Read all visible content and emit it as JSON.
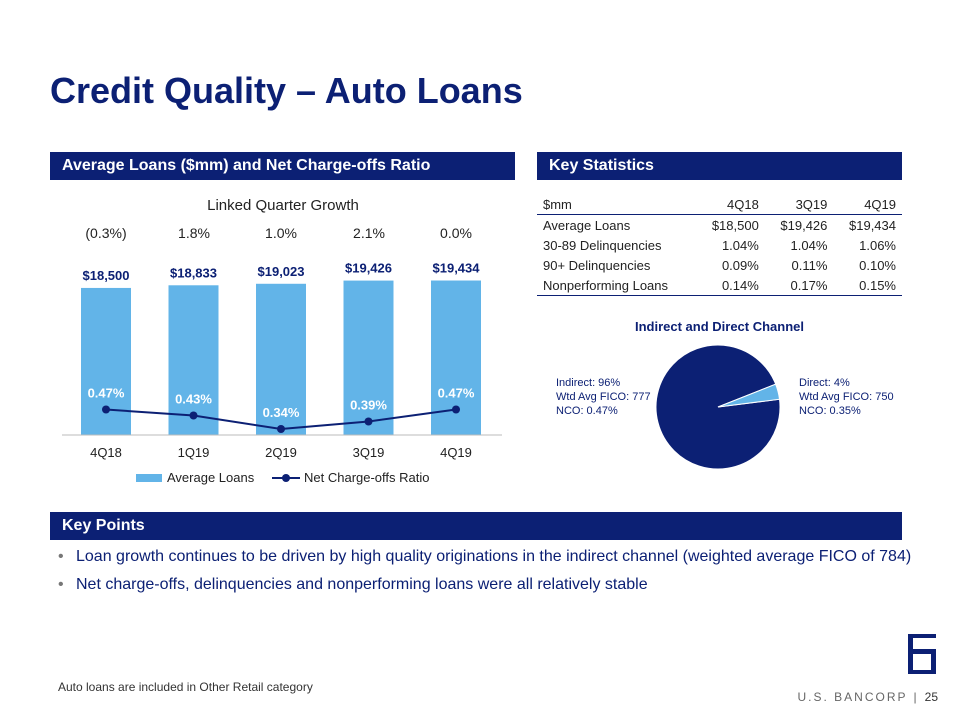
{
  "title": "Credit Quality – Auto Loans",
  "sections": {
    "left": "Average Loans ($mm) and Net Charge-offs Ratio",
    "right": "Key Statistics",
    "key_points": "Key Points"
  },
  "chart": {
    "growth_title": "Linked Quarter Growth",
    "growth": [
      "(0.3%)",
      "1.8%",
      "1.0%",
      "2.1%",
      "0.0%"
    ],
    "legend": {
      "bars": "Average Loans",
      "line": "Net Charge-offs Ratio"
    },
    "colors": {
      "bar": "#62b4e8",
      "line": "#0c2074"
    }
  },
  "chart_data": {
    "type": "bar",
    "categories": [
      "4Q18",
      "1Q19",
      "2Q19",
      "3Q19",
      "4Q19"
    ],
    "series": [
      {
        "name": "Average Loans",
        "type": "bar",
        "values": [
          18500,
          18833,
          19023,
          19426,
          19434
        ],
        "labels": [
          "$18,500",
          "$18,833",
          "$19,023",
          "$19,426",
          "$19,434"
        ]
      },
      {
        "name": "Net Charge-offs Ratio",
        "type": "line",
        "values": [
          0.47,
          0.43,
          0.34,
          0.39,
          0.47
        ],
        "labels": [
          "0.47%",
          "0.43%",
          "0.34%",
          "0.39%",
          "0.47%"
        ]
      }
    ],
    "title": "",
    "xlabel": "",
    "ylabel": ""
  },
  "stats_table": {
    "headers": [
      "$mm",
      "4Q18",
      "3Q19",
      "4Q19"
    ],
    "rows": [
      [
        "Average Loans",
        "$18,500",
        "$19,426",
        "$19,434"
      ],
      [
        "30-89 Delinquencies",
        "1.04%",
        "1.04%",
        "1.06%"
      ],
      [
        "90+ Delinquencies",
        "0.09%",
        "0.11%",
        "0.10%"
      ],
      [
        "Nonperforming Loans",
        "0.14%",
        "0.17%",
        "0.15%"
      ]
    ]
  },
  "pie": {
    "title": "Indirect and Direct Channel",
    "left_label": [
      "Indirect: 96%",
      "Wtd Avg FICO: 777",
      "NCO: 0.47%"
    ],
    "right_label": [
      "Direct: 4%",
      "Wtd Avg FICO: 750",
      "NCO: 0.35%"
    ],
    "slices": [
      {
        "name": "Indirect",
        "value": 96,
        "color": "#0c2074"
      },
      {
        "name": "Direct",
        "value": 4,
        "color": "#62b4e8"
      }
    ]
  },
  "key_points": [
    "Loan growth continues to be driven by high quality originations in the indirect channel (weighted average FICO of 784)",
    "Net charge-offs, delinquencies and nonperforming loans were all relatively stable"
  ],
  "footnote": "Auto loans are included in Other Retail category",
  "brand": "U.S. BANCORP",
  "page_number": "25"
}
